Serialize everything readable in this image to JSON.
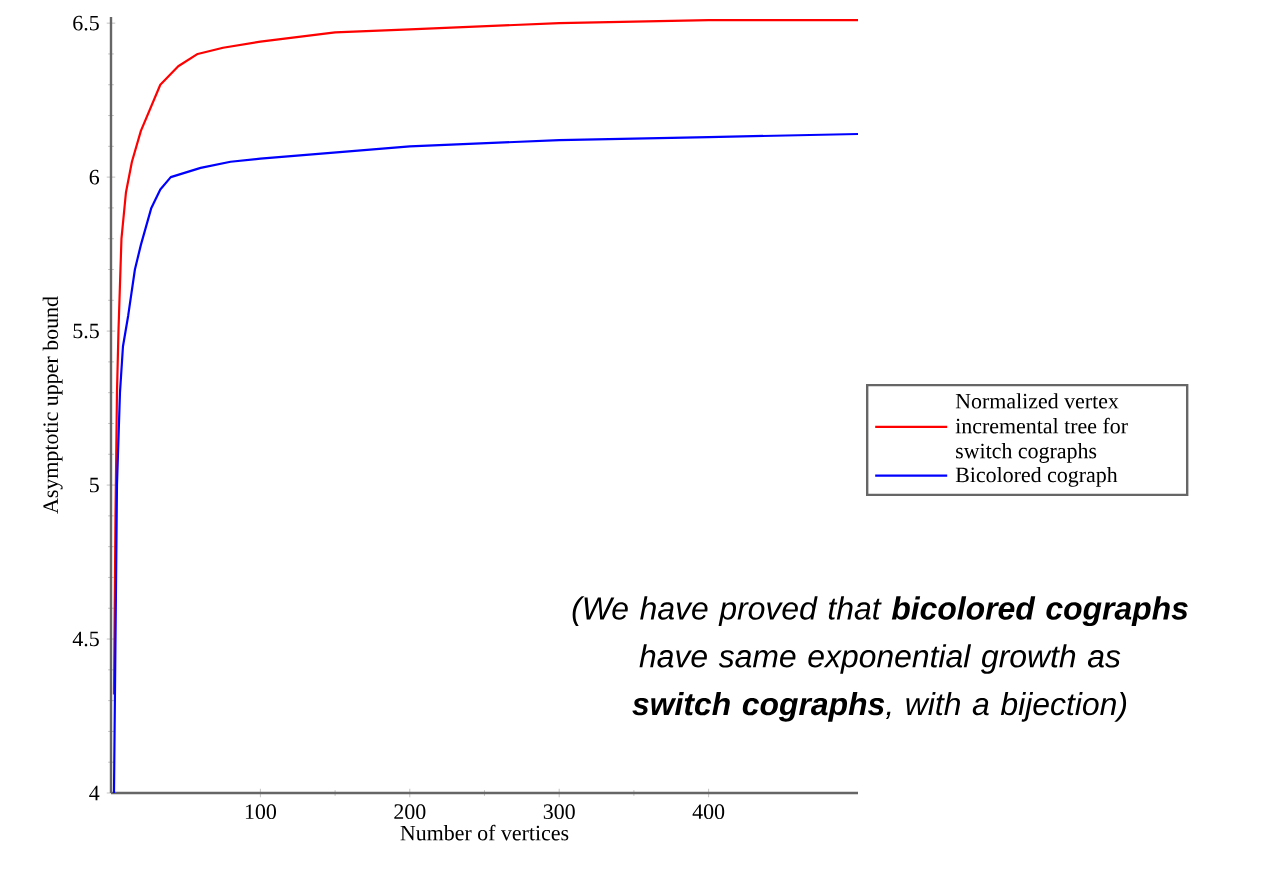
{
  "chart_data": {
    "type": "line",
    "xlabel": "Number of vertices",
    "ylabel": "Asymptotic upper bound",
    "xlim": [
      0,
      500
    ],
    "ylim": [
      4,
      6.52
    ],
    "xticks": [
      100,
      200,
      300,
      400
    ],
    "yticks": [
      4,
      4.5,
      5,
      5.5,
      6,
      6.5
    ],
    "legend": "right",
    "series": [
      {
        "name": "Normalized vertex incremental tree for switch cographs",
        "color": "#ff0000",
        "x": [
          2,
          3,
          4,
          5,
          7,
          10,
          14,
          20,
          33,
          45,
          58,
          75,
          100,
          150,
          200,
          300,
          400,
          500
        ],
        "values": [
          4.32,
          4.9,
          5.3,
          5.5,
          5.8,
          5.95,
          6.05,
          6.15,
          6.3,
          6.36,
          6.4,
          6.42,
          6.44,
          6.47,
          6.48,
          6.5,
          6.51,
          6.51
        ]
      },
      {
        "name": "Bicolored cograph",
        "color": "#0000ff",
        "x": [
          2,
          4,
          6,
          8,
          11.5,
          16,
          20,
          27,
          33,
          40,
          60,
          80,
          100,
          200,
          300,
          400,
          500
        ],
        "values": [
          4.0,
          5.0,
          5.3,
          5.45,
          5.55,
          5.7,
          5.78,
          5.9,
          5.96,
          6.0,
          6.03,
          6.05,
          6.06,
          6.1,
          6.12,
          6.13,
          6.14
        ]
      }
    ],
    "annotations": [
      "(We have proved that **bicolored cographs** have same exponential growth as **switch cographs**, with a bijection)"
    ]
  }
}
